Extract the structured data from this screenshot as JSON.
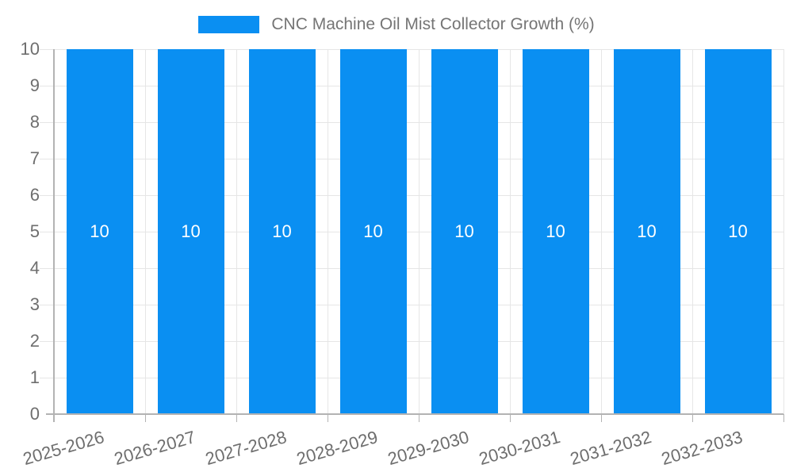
{
  "chart_data": {
    "type": "bar",
    "title": "CNC Machine Oil Mist Collector Growth (%)",
    "categories": [
      "2025-2026",
      "2026-2027",
      "2027-2028",
      "2028-2029",
      "2029-2030",
      "2030-2031",
      "2031-2032",
      "2032-2033"
    ],
    "values": [
      10,
      10,
      10,
      10,
      10,
      10,
      10,
      10
    ],
    "bar_labels": [
      "10",
      "10",
      "10",
      "10",
      "10",
      "10",
      "10",
      "10"
    ],
    "xlabel": "",
    "ylabel": "",
    "ylim": [
      0,
      10
    ],
    "ytick_step": 1,
    "yticks": [
      0,
      1,
      2,
      3,
      4,
      5,
      6,
      7,
      8,
      9,
      10
    ],
    "grid": "on",
    "legend_position": "top-center"
  },
  "legend": {
    "series_label": "CNC Machine Oil Mist Collector Growth (%)"
  },
  "colors": {
    "bar": "#0a8ff2",
    "bar_label": "#ffffff",
    "gridline": "#e6e6e6",
    "axis_line": "#b3b3b3",
    "axis_tick": "#b3b3b3",
    "axis_text": "#6e6e6e",
    "legend_text": "#757575",
    "background": "#ffffff"
  }
}
